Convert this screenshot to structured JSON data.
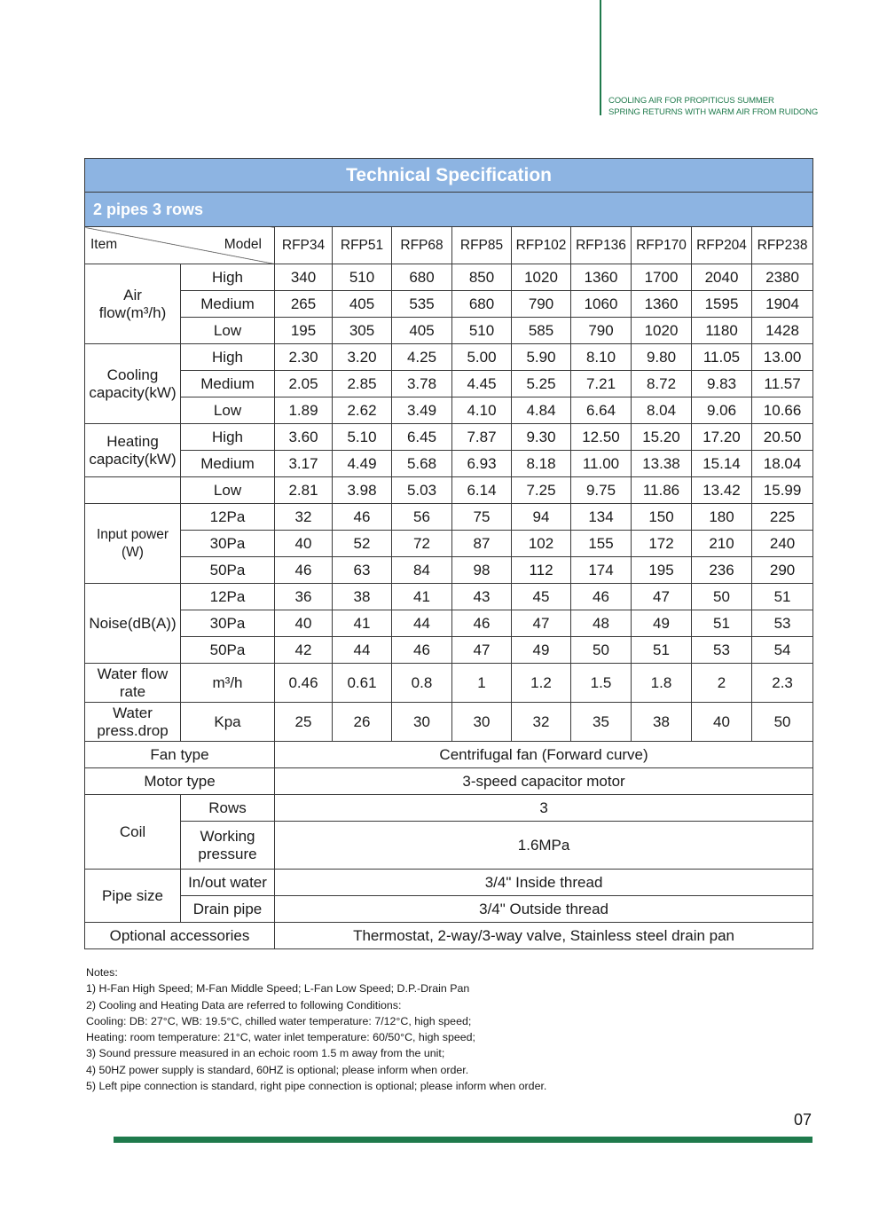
{
  "header": {
    "tagline1": "COOLING AIR FOR PROPITICUS SUMMER",
    "tagline2": "SPRING RETURNS WITH WARM AIR FROM RUIDONG"
  },
  "table": {
    "title": "Technical Specification",
    "subtitle": "2 pipes 3 rows",
    "item_label": "Item",
    "model_label": "Model",
    "models": [
      "RFP34",
      "RFP51",
      "RFP68",
      "RFP85",
      "RFP102",
      "RFP136",
      "RFP170",
      "RFP204",
      "RFP238"
    ],
    "air_flow": {
      "label_1": "Air",
      "label_2": "flow(m³/h)",
      "rows": [
        {
          "sub": "High",
          "values": [
            "340",
            "510",
            "680",
            "850",
            "1020",
            "1360",
            "1700",
            "2040",
            "2380"
          ]
        },
        {
          "sub": "Medium",
          "values": [
            "265",
            "405",
            "535",
            "680",
            "790",
            "1060",
            "1360",
            "1595",
            "1904"
          ]
        },
        {
          "sub": "Low",
          "values": [
            "195",
            "305",
            "405",
            "510",
            "585",
            "790",
            "1020",
            "1180",
            "1428"
          ]
        }
      ]
    },
    "cooling": {
      "label_1": "Cooling",
      "label_2": "capacity(kW)",
      "rows": [
        {
          "sub": "High",
          "values": [
            "2.30",
            "3.20",
            "4.25",
            "5.00",
            "5.90",
            "8.10",
            "9.80",
            "11.05",
            "13.00"
          ]
        },
        {
          "sub": "Medium",
          "values": [
            "2.05",
            "2.85",
            "3.78",
            "4.45",
            "5.25",
            "7.21",
            "8.72",
            "9.83",
            "11.57"
          ]
        },
        {
          "sub": "Low",
          "values": [
            "1.89",
            "2.62",
            "3.49",
            "4.10",
            "4.84",
            "6.64",
            "8.04",
            "9.06",
            "10.66"
          ]
        }
      ]
    },
    "heating": {
      "label_1": "Heating",
      "label_2": "capacity(kW)",
      "rows": [
        {
          "sub": "High",
          "values": [
            "3.60",
            "5.10",
            "6.45",
            "7.87",
            "9.30",
            "12.50",
            "15.20",
            "17.20",
            "20.50"
          ]
        },
        {
          "sub": "Medium",
          "values": [
            "3.17",
            "4.49",
            "5.68",
            "6.93",
            "8.18",
            "11.00",
            "13.38",
            "15.14",
            "18.04"
          ]
        },
        {
          "sub": "Low",
          "values": [
            "2.81",
            "3.98",
            "5.03",
            "6.14",
            "7.25",
            "9.75",
            "11.86",
            "13.42",
            "15.99"
          ]
        }
      ]
    },
    "input_power": {
      "label_1": "Input power",
      "label_2": "(W)",
      "rows": [
        {
          "sub": "12Pa",
          "values": [
            "32",
            "46",
            "56",
            "75",
            "94",
            "134",
            "150",
            "180",
            "225"
          ]
        },
        {
          "sub": "30Pa",
          "values": [
            "40",
            "52",
            "72",
            "87",
            "102",
            "155",
            "172",
            "210",
            "240"
          ]
        },
        {
          "sub": "50Pa",
          "values": [
            "46",
            "63",
            "84",
            "98",
            "112",
            "174",
            "195",
            "236",
            "290"
          ]
        }
      ]
    },
    "noise": {
      "label": "Noise(dB(A))",
      "rows": [
        {
          "sub": "12Pa",
          "values": [
            "36",
            "38",
            "41",
            "43",
            "45",
            "46",
            "47",
            "50",
            "51"
          ]
        },
        {
          "sub": "30Pa",
          "values": [
            "40",
            "41",
            "44",
            "46",
            "47",
            "48",
            "49",
            "51",
            "53"
          ]
        },
        {
          "sub": "50Pa",
          "values": [
            "42",
            "44",
            "46",
            "47",
            "49",
            "50",
            "51",
            "53",
            "54"
          ]
        }
      ]
    },
    "water_flow": {
      "label_1": "Water flow",
      "label_2": "rate",
      "unit": "m³/h",
      "values": [
        "0.46",
        "0.61",
        "0.8",
        "1",
        "1.2",
        "1.5",
        "1.8",
        "2",
        "2.3"
      ]
    },
    "water_press": {
      "label_1": "Water",
      "label_2": "press.drop",
      "unit": "Kpa",
      "values": [
        "25",
        "26",
        "30",
        "30",
        "32",
        "35",
        "38",
        "40",
        "50"
      ]
    },
    "fan_type": {
      "label": "Fan type",
      "value": "Centrifugal fan (Forward curve)"
    },
    "motor_type": {
      "label": "Motor type",
      "value": "3-speed capacitor motor"
    },
    "coil": {
      "label": "Coil",
      "rows_label": "Rows",
      "rows_value": "3",
      "working_label_1": "Working",
      "working_label_2": "pressure",
      "working_value": "1.6MPa"
    },
    "pipe_size": {
      "label": "Pipe size",
      "inout_label": "In/out water",
      "inout_value": "3/4\" Inside thread",
      "drain_label": "Drain pipe",
      "drain_value": "3/4\" Outside thread"
    },
    "optional": {
      "label": "Optional accessories",
      "value": "Thermostat, 2-way/3-way valve, Stainless steel drain pan"
    }
  },
  "notes": {
    "title": "Notes:",
    "lines": [
      "1) H-Fan High Speed; M-Fan Middle Speed; L-Fan Low Speed; D.P.-Drain Pan",
      "2) Cooling and Heating Data are referred to following Conditions:",
      "Cooling: DB: 27°C, WB: 19.5°C, chilled water temperature: 7/12°C, high speed;",
      "Heating: room temperature: 21°C, water inlet temperature: 60/50°C, high speed;",
      "3) Sound pressure measured in an echoic room 1.5 m away from the unit;",
      "4) 50HZ power supply is standard, 60HZ is optional; please inform when order.",
      "5) Left pipe connection is standard, right pipe connection is optional; please inform when order."
    ]
  },
  "page_number": "07",
  "colors": {
    "brand_green": "#1f7a4c",
    "header_blue": "#8db4e2"
  }
}
